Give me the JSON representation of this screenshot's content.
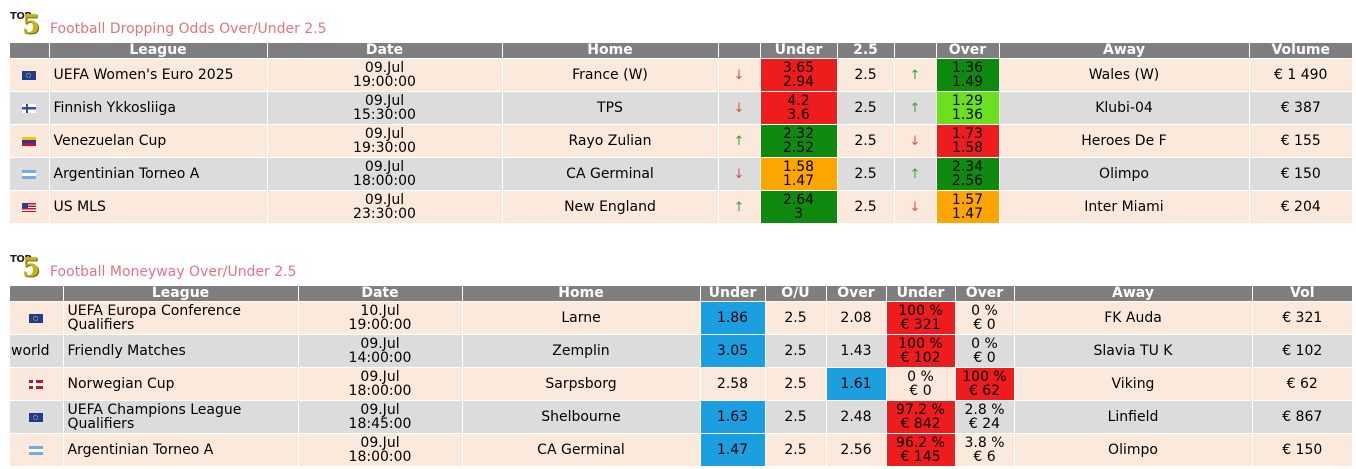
{
  "section1": {
    "logo_top": "TOP",
    "logo_five": "5",
    "title": "Football Dropping Odds Over/Under 2.5",
    "headers": [
      "",
      "League",
      "Date",
      "Home",
      "",
      "Under",
      "2.5",
      "",
      "Over",
      "Away",
      "Volume"
    ],
    "rows": [
      {
        "flag": "eu",
        "league": "UEFA Women's Euro 2025",
        "date": "09.Jul",
        "time": "19:00:00",
        "home": "France (W)",
        "under_dir": "down",
        "under_open": "3.65",
        "under_now": "2.94",
        "under_color": "red",
        "line": "2.5",
        "over_dir": "up",
        "over_open": "1.36",
        "over_now": "1.49",
        "over_color": "green",
        "away": "Wales (W)",
        "volume": "€ 1 490"
      },
      {
        "flag": "fi",
        "league": "Finnish Ykkosliiga",
        "date": "09.Jul",
        "time": "15:30:00",
        "home": "TPS",
        "under_dir": "down",
        "under_open": "4.2",
        "under_now": "3.6",
        "under_color": "red",
        "line": "2.5",
        "over_dir": "up",
        "over_open": "1.29",
        "over_now": "1.36",
        "over_color": "lime",
        "away": "Klubi-04",
        "volume": "€ 387"
      },
      {
        "flag": "ve",
        "league": "Venezuelan Cup",
        "date": "09.Jul",
        "time": "19:30:00",
        "home": "Rayo Zulian",
        "under_dir": "up",
        "under_open": "2.32",
        "under_now": "2.52",
        "under_color": "green",
        "line": "2.5",
        "over_dir": "down",
        "over_open": "1.73",
        "over_now": "1.58",
        "over_color": "red",
        "away": "Heroes De F",
        "volume": "€ 155"
      },
      {
        "flag": "ar",
        "league": "Argentinian Torneo A",
        "date": "09.Jul",
        "time": "18:00:00",
        "home": "CA Germinal",
        "under_dir": "down",
        "under_open": "1.58",
        "under_now": "1.47",
        "under_color": "orange",
        "line": "2.5",
        "over_dir": "up",
        "over_open": "2.34",
        "over_now": "2.56",
        "over_color": "green",
        "away": "Olimpo",
        "volume": "€ 150"
      },
      {
        "flag": "us",
        "league": "US MLS",
        "date": "09.Jul",
        "time": "23:30:00",
        "home": "New England",
        "under_dir": "up",
        "under_open": "2.64",
        "under_now": "3",
        "under_color": "green",
        "line": "2.5",
        "over_dir": "down",
        "over_open": "1.57",
        "over_now": "1.47",
        "over_color": "orange",
        "away": "Inter Miami",
        "volume": "€ 204"
      }
    ]
  },
  "section2": {
    "logo_top": "TOP",
    "logo_five": "5",
    "title": "Football Moneyway Over/Under 2.5",
    "headers": [
      "",
      "League",
      "Date",
      "Home",
      "Under",
      "O/U",
      "Over",
      "Under",
      "Over",
      "Away",
      "Vol"
    ],
    "rows": [
      {
        "flag": "eu",
        "flag_text": "",
        "league": "UEFA Europa Conference Qualifiers",
        "date": "10.Jul",
        "time": "19:00:00",
        "home": "Larne",
        "under": "1.86",
        "under_hl": true,
        "ou": "2.5",
        "over": "2.08",
        "over_hl": false,
        "mu_pct": "100 %",
        "mu_amt": "€ 321",
        "mu_hl": true,
        "mo_pct": "0 %",
        "mo_amt": "€ 0",
        "mo_hl": false,
        "away": "FK Auda",
        "vol": "€ 321"
      },
      {
        "flag": "",
        "flag_text": "world",
        "league": "Friendly Matches",
        "date": "09.Jul",
        "time": "14:00:00",
        "home": "Zemplin",
        "under": "3.05",
        "under_hl": true,
        "ou": "2.5",
        "over": "1.43",
        "over_hl": false,
        "mu_pct": "100 %",
        "mu_amt": "€ 102",
        "mu_hl": true,
        "mo_pct": "0 %",
        "mo_amt": "€ 0",
        "mo_hl": false,
        "away": "Slavia TU K",
        "vol": "€ 102"
      },
      {
        "flag": "no",
        "flag_text": "",
        "league": "Norwegian Cup",
        "date": "09.Jul",
        "time": "18:00:00",
        "home": "Sarpsborg",
        "under": "2.58",
        "under_hl": false,
        "ou": "2.5",
        "over": "1.61",
        "over_hl": true,
        "mu_pct": "0 %",
        "mu_amt": "€ 0",
        "mu_hl": false,
        "mo_pct": "100 %",
        "mo_amt": "€ 62",
        "mo_hl": true,
        "away": "Viking",
        "vol": "€ 62"
      },
      {
        "flag": "eu",
        "flag_text": "",
        "league": "UEFA Champions League Qualifiers",
        "date": "09.Jul",
        "time": "18:45:00",
        "home": "Shelbourne",
        "under": "1.63",
        "under_hl": true,
        "ou": "2.5",
        "over": "2.48",
        "over_hl": false,
        "mu_pct": "97.2 %",
        "mu_amt": "€ 842",
        "mu_hl": true,
        "mo_pct": "2.8 %",
        "mo_amt": "€ 24",
        "mo_hl": false,
        "away": "Linfield",
        "vol": "€ 867"
      },
      {
        "flag": "ar",
        "flag_text": "",
        "league": "Argentinian Torneo A",
        "date": "09.Jul",
        "time": "18:00:00",
        "home": "CA Germinal",
        "under": "1.47",
        "under_hl": true,
        "ou": "2.5",
        "over": "2.56",
        "over_hl": false,
        "mu_pct": "96.2 %",
        "mu_amt": "€ 145",
        "mu_hl": true,
        "mo_pct": "3.8 %",
        "mo_amt": "€ 6",
        "mo_hl": false,
        "away": "Olimpo",
        "vol": "€ 150"
      }
    ]
  },
  "colors": {
    "red": "#ee1c1c",
    "green": "#0e8a0e",
    "lime": "#6ae01e",
    "orange": "#ffa500",
    "blue": "#1b9fe0",
    "title": "#e8727a",
    "header_bg": "#807f7f"
  }
}
